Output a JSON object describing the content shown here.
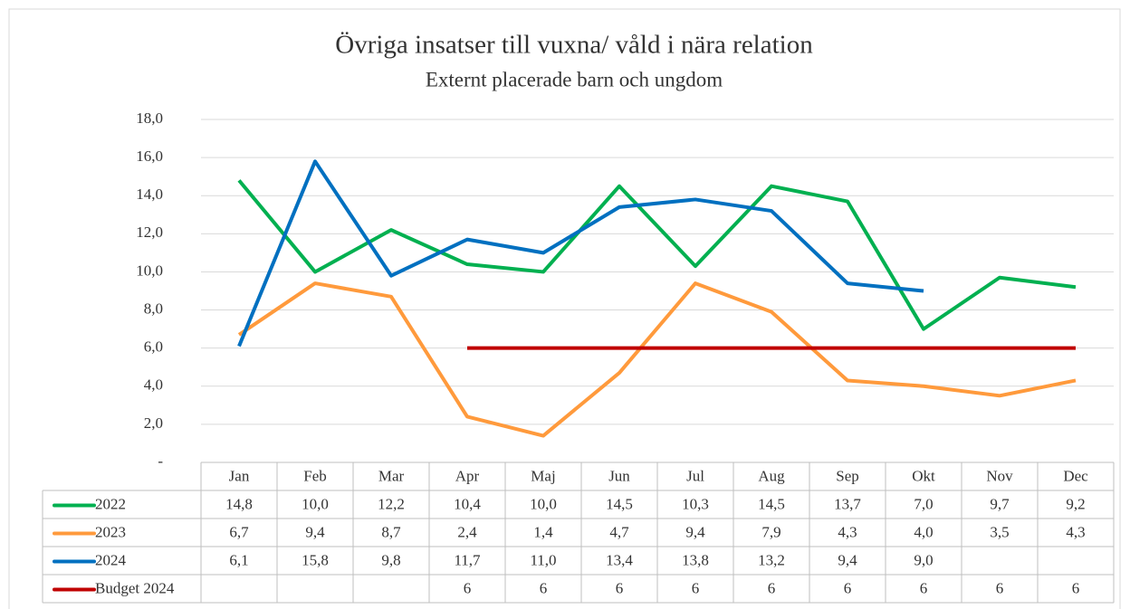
{
  "chart_data": {
    "type": "line",
    "title": "Övriga insatser till vuxna/ våld i nära relation",
    "subtitle": "Externt placerade barn och ungdom",
    "categories": [
      "Jan",
      "Feb",
      "Mar",
      "Apr",
      "Maj",
      "Jun",
      "Jul",
      "Aug",
      "Sep",
      "Okt",
      "Nov",
      "Dec"
    ],
    "series": [
      {
        "name": "2022",
        "color": "#00b050",
        "values": [
          14.8,
          10.0,
          12.2,
          10.4,
          10.0,
          14.5,
          10.3,
          14.5,
          13.7,
          7.0,
          9.7,
          9.2
        ],
        "value_labels": [
          "14,8",
          "10,0",
          "12,2",
          "10,4",
          "10,0",
          "14,5",
          "10,3",
          "14,5",
          "13,7",
          "7,0",
          "9,7",
          "9,2"
        ]
      },
      {
        "name": "2023",
        "color": "#ff9a3c",
        "values": [
          6.7,
          9.4,
          8.7,
          2.4,
          1.4,
          4.7,
          9.4,
          7.9,
          4.3,
          4.0,
          3.5,
          4.3
        ],
        "value_labels": [
          "6,7",
          "9,4",
          "8,7",
          "2,4",
          "1,4",
          "4,7",
          "9,4",
          "7,9",
          "4,3",
          "4,0",
          "3,5",
          "4,3"
        ]
      },
      {
        "name": "2024",
        "color": "#0070c0",
        "values": [
          6.1,
          15.8,
          9.8,
          11.7,
          11.0,
          13.4,
          13.8,
          13.2,
          9.4,
          9.0,
          null,
          null
        ],
        "value_labels": [
          "6,1",
          "15,8",
          "9,8",
          "11,7",
          "11,0",
          "13,4",
          "13,8",
          "13,2",
          "9,4",
          "9,0",
          null,
          null
        ]
      },
      {
        "name": "Budget 2024",
        "color": "#c00000",
        "values": [
          null,
          null,
          null,
          6,
          6,
          6,
          6,
          6,
          6,
          6,
          6,
          6
        ]
      }
    ],
    "ylim": [
      0,
      18
    ],
    "yticks": [
      {
        "value": 0,
        "label": "-"
      },
      {
        "value": 2,
        "label": "2,0"
      },
      {
        "value": 4,
        "label": "4,0"
      },
      {
        "value": 6,
        "label": "6,0"
      },
      {
        "value": 8,
        "label": "8,0"
      },
      {
        "value": 10,
        "label": "10,0"
      },
      {
        "value": 12,
        "label": "12,0"
      },
      {
        "value": 14,
        "label": "14,0"
      },
      {
        "value": 16,
        "label": "16,0"
      },
      {
        "value": 18,
        "label": "18,0"
      }
    ],
    "grid": true
  }
}
